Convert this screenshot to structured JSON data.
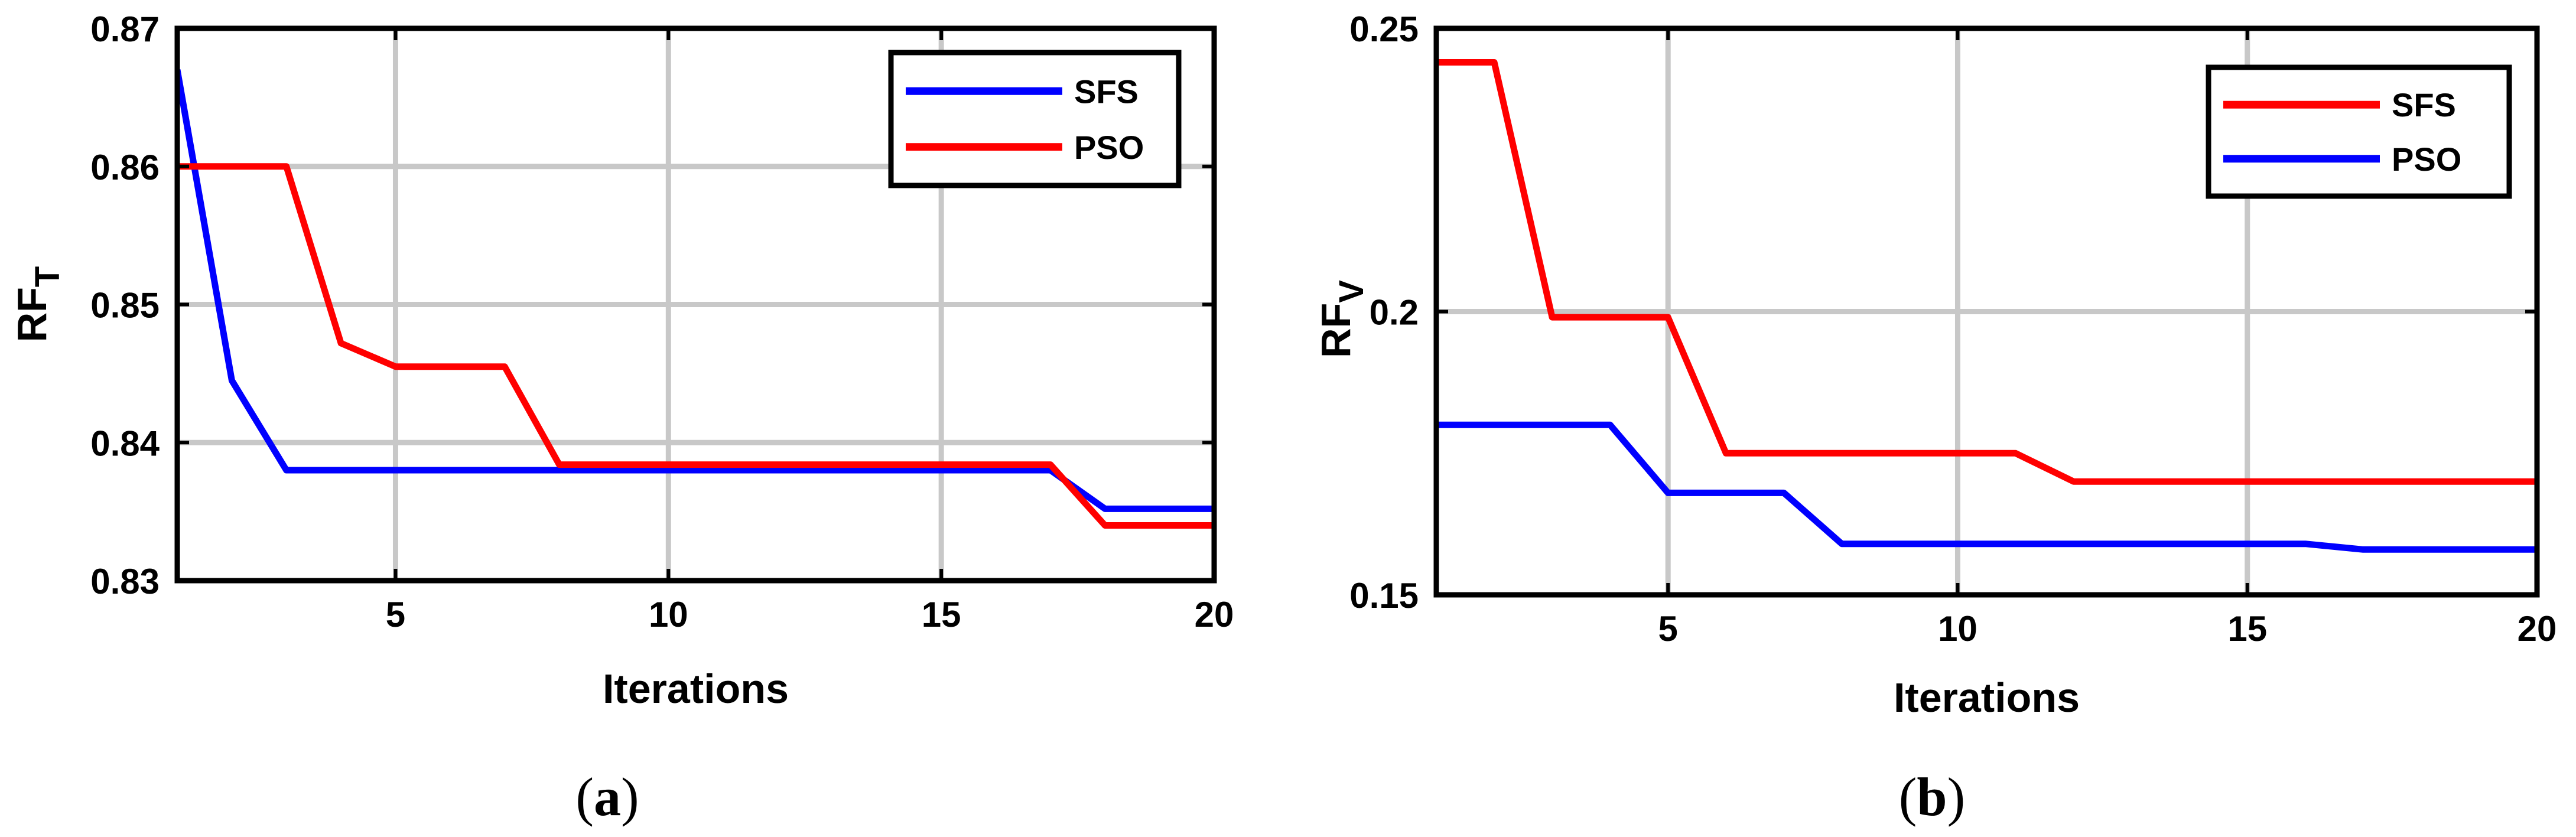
{
  "chart_data": [
    {
      "type": "line",
      "panel": "(a)",
      "caption_open": "(",
      "caption_letter": "a",
      "caption_close": ")",
      "xlabel": "Iterations",
      "ylabel_main": "RF",
      "ylabel_sub": "T",
      "xlim": [
        1,
        20
      ],
      "ylim": [
        0.83,
        0.87
      ],
      "xticks": [
        5,
        10,
        15,
        20
      ],
      "xtick_labels": [
        "5",
        "10",
        "15",
        "20"
      ],
      "yticks": [
        0.83,
        0.84,
        0.85,
        0.86,
        0.87
      ],
      "ytick_labels": [
        "0.83",
        "0.84",
        "0.85",
        "0.86",
        "0.87"
      ],
      "grid": true,
      "legend_position": "top-right",
      "x": [
        1,
        2,
        3,
        4,
        5,
        6,
        7,
        8,
        9,
        10,
        11,
        12,
        13,
        14,
        15,
        16,
        17,
        18,
        19,
        20
      ],
      "series": [
        {
          "name": "SFS",
          "color": "#0000ff",
          "values": [
            0.867,
            0.8445,
            0.838,
            0.838,
            0.838,
            0.838,
            0.838,
            0.838,
            0.838,
            0.838,
            0.838,
            0.838,
            0.838,
            0.838,
            0.838,
            0.838,
            0.838,
            0.8352,
            0.8352,
            0.8352
          ]
        },
        {
          "name": "PSO",
          "color": "#ff0000",
          "values": [
            0.86,
            0.86,
            0.86,
            0.8472,
            0.8455,
            0.8455,
            0.8455,
            0.8384,
            0.8384,
            0.8384,
            0.8384,
            0.8384,
            0.8384,
            0.8384,
            0.8384,
            0.8384,
            0.8384,
            0.834,
            0.834,
            0.834
          ]
        }
      ]
    },
    {
      "type": "line",
      "panel": "(b)",
      "caption_open": "(",
      "caption_letter": "b",
      "caption_close": ")",
      "xlabel": "Iterations",
      "ylabel_main": "RF",
      "ylabel_sub": "V",
      "xlim": [
        1,
        20
      ],
      "ylim": [
        0.15,
        0.25
      ],
      "xticks": [
        5,
        10,
        15,
        20
      ],
      "xtick_labels": [
        "5",
        "10",
        "15",
        "20"
      ],
      "yticks": [
        0.15,
        0.2,
        0.25
      ],
      "ytick_labels": [
        "0.15",
        "0.2",
        "0.25"
      ],
      "grid": true,
      "legend_position": "top-right",
      "x": [
        1,
        2,
        3,
        4,
        5,
        6,
        7,
        8,
        9,
        10,
        11,
        12,
        13,
        14,
        15,
        16,
        17,
        18,
        19,
        20
      ],
      "series": [
        {
          "name": "SFS",
          "color": "#ff0000",
          "values": [
            0.244,
            0.244,
            0.199,
            0.199,
            0.199,
            0.175,
            0.175,
            0.175,
            0.175,
            0.175,
            0.175,
            0.17,
            0.17,
            0.17,
            0.17,
            0.17,
            0.17,
            0.17,
            0.17,
            0.17
          ]
        },
        {
          "name": "PSO",
          "color": "#0000ff",
          "values": [
            0.18,
            0.18,
            0.18,
            0.18,
            0.168,
            0.168,
            0.168,
            0.159,
            0.159,
            0.159,
            0.159,
            0.159,
            0.159,
            0.159,
            0.159,
            0.159,
            0.158,
            0.158,
            0.158,
            0.158
          ]
        }
      ]
    }
  ]
}
